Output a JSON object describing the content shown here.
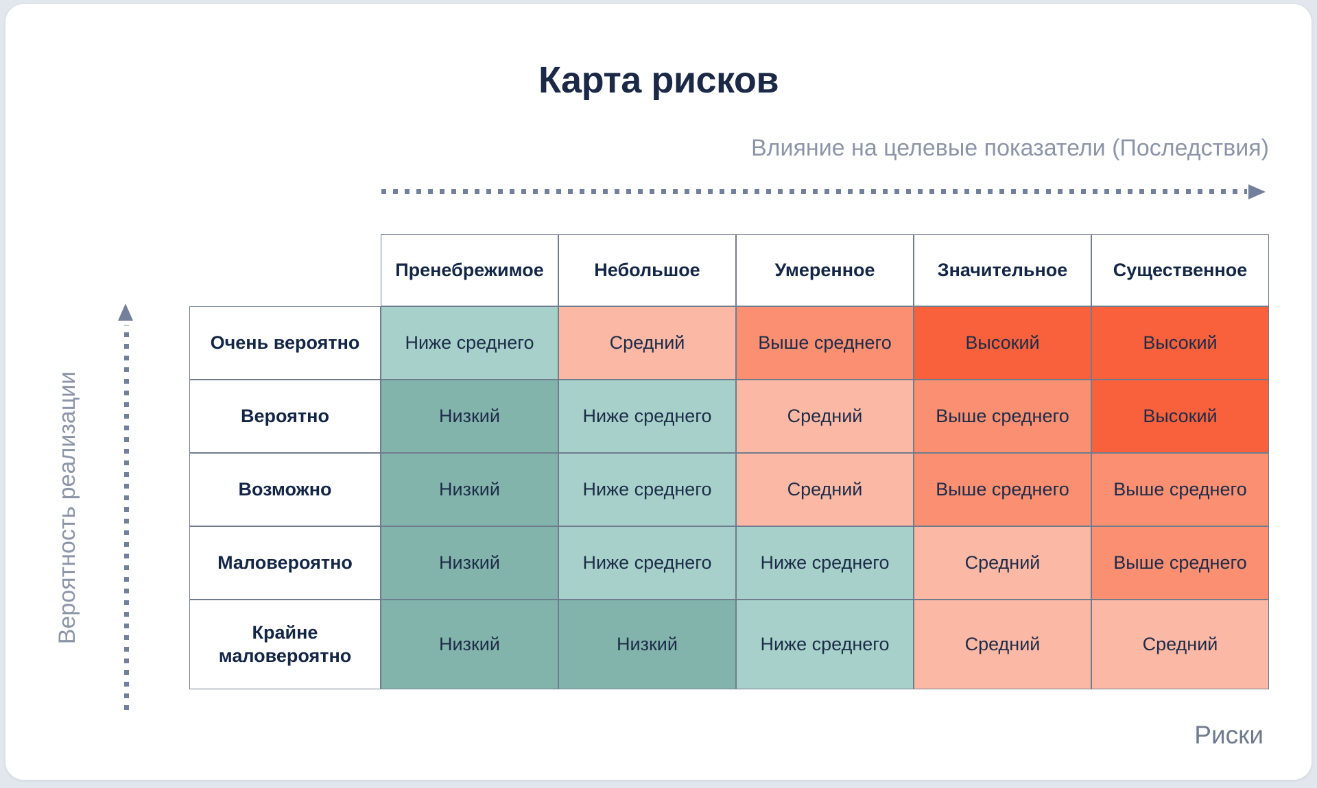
{
  "chart_data": {
    "type": "heatmap",
    "title": "Карта рисков",
    "xlabel": "Влияние на целевые показатели (Последствия)",
    "ylabel": "Вероятность реализации",
    "x_categories": [
      "Пренебрежимое",
      "Небольшое",
      "Умеренное",
      "Значительное",
      "Существенное"
    ],
    "y_categories": [
      "Очень вероятно",
      "Вероятно",
      "Возможно",
      "Маловероятно",
      "Крайне маловероятно"
    ],
    "values": [
      [
        {
          "text": "Ниже среднего",
          "level": "below-average"
        },
        {
          "text": "Средний",
          "level": "medium"
        },
        {
          "text": "Выше среднего",
          "level": "above-average"
        },
        {
          "text": "Высокий",
          "level": "high"
        },
        {
          "text": "Высокий",
          "level": "high"
        }
      ],
      [
        {
          "text": "Низкий",
          "level": "low"
        },
        {
          "text": "Ниже среднего",
          "level": "below-average"
        },
        {
          "text": "Средний",
          "level": "medium"
        },
        {
          "text": "Выше среднего",
          "level": "above-average"
        },
        {
          "text": "Высокий",
          "level": "high"
        }
      ],
      [
        {
          "text": "Низкий",
          "level": "low"
        },
        {
          "text": "Ниже среднего",
          "level": "below-average"
        },
        {
          "text": "Средний",
          "level": "medium"
        },
        {
          "text": "Выше среднего",
          "level": "above-average"
        },
        {
          "text": "Выше среднего",
          "level": "above-average"
        }
      ],
      [
        {
          "text": "Низкий",
          "level": "low"
        },
        {
          "text": "Ниже среднего",
          "level": "below-average"
        },
        {
          "text": "Ниже среднего",
          "level": "below-average"
        },
        {
          "text": "Средний",
          "level": "medium"
        },
        {
          "text": "Выше среднего",
          "level": "above-average"
        }
      ],
      [
        {
          "text": "Низкий",
          "level": "low"
        },
        {
          "text": "Низкий",
          "level": "low"
        },
        {
          "text": "Ниже среднего",
          "level": "below-average"
        },
        {
          "text": "Средний",
          "level": "medium"
        },
        {
          "text": "Средний",
          "level": "medium"
        }
      ]
    ],
    "level_colors": {
      "low": "#83b4ab",
      "below-average": "#a6d0c9",
      "medium": "#fbb8a4",
      "above-average": "#fa8f72",
      "high": "#f9613c"
    },
    "grid": true,
    "legend_position": "none"
  },
  "labels": {
    "corner_label": "Риски"
  },
  "ui_colors": {
    "title_navy": "#1b2947",
    "muted_gray": "#8c95a7",
    "arrow_gray": "#73809b",
    "grid_border": "#6f7c8e",
    "card_bg": "#ffffff",
    "page_bg": "#e2e7ee"
  }
}
